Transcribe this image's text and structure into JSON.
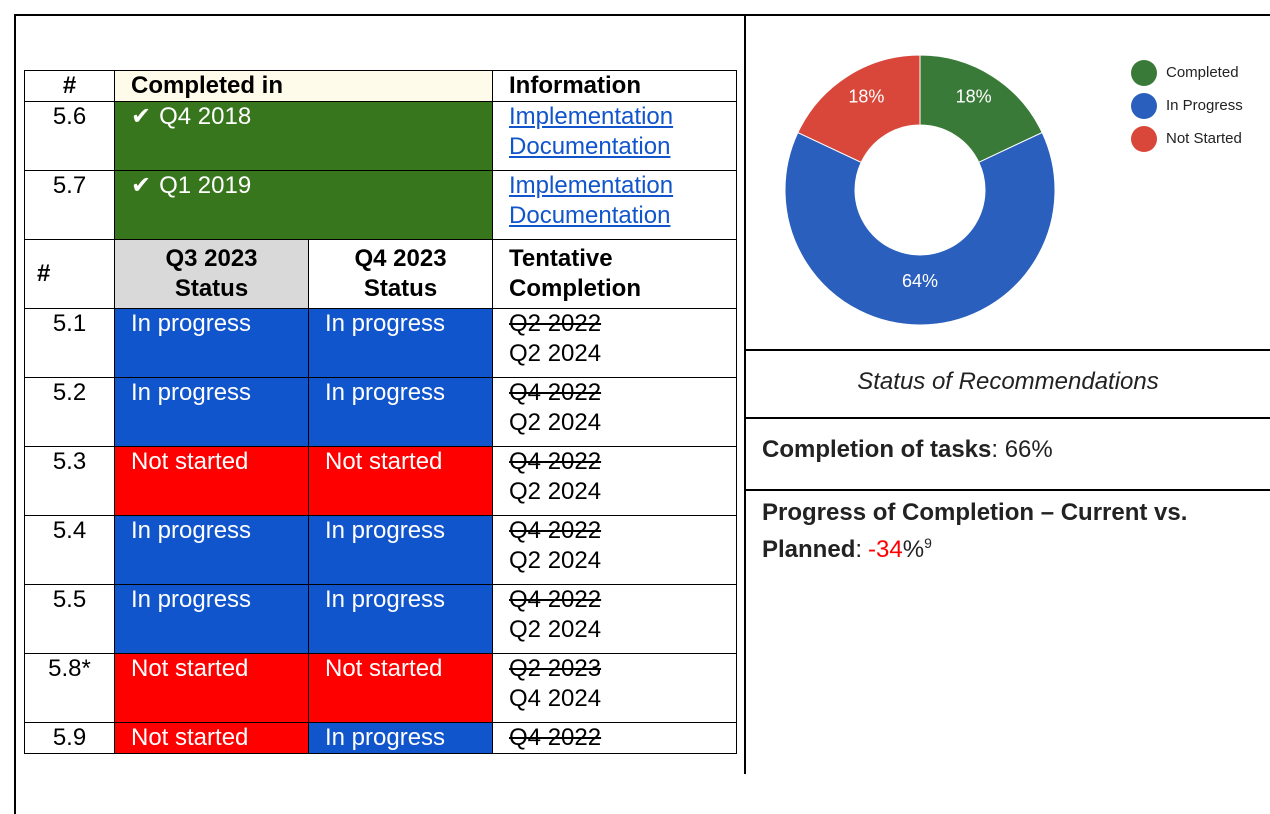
{
  "table": {
    "header1": [
      "#",
      "Completed in",
      "Information"
    ],
    "completed_rows": [
      {
        "id": "5.6",
        "check": "✔",
        "quarter": "Q4 2018",
        "links": [
          "Implementation",
          "Documentation"
        ],
        "color": "#38761d"
      },
      {
        "id": "5.7",
        "check": "✔",
        "quarter": "Q1 2019",
        "links": [
          "Implementation",
          "Documentation"
        ],
        "color": "#38761d"
      }
    ],
    "header2": [
      "#",
      "Q3 2023\nStatus",
      "Q4 2023\nStatus",
      "Tentative\nCompletion"
    ],
    "rows": [
      {
        "id": "5.1",
        "q3": "In progress",
        "q3_color": "#1155cc",
        "q4": "In progress",
        "q4_color": "#1155cc",
        "old": "Q2 2022",
        "new": "Q2 2024"
      },
      {
        "id": "5.2",
        "q3": "In progress",
        "q3_color": "#1155cc",
        "q4": "In progress",
        "q4_color": "#1155cc",
        "old": "Q4 2022",
        "new": "Q2 2024"
      },
      {
        "id": "5.3",
        "q3": "Not started",
        "q3_color": "#ff0000",
        "q4": "Not started",
        "q4_color": "#ff0000",
        "old": "Q4 2022",
        "new": "Q2 2024"
      },
      {
        "id": "5.4",
        "q3": "In progress",
        "q3_color": "#1155cc",
        "q4": "In progress",
        "q4_color": "#1155cc",
        "old": "Q4 2022",
        "new": "Q2 2024"
      },
      {
        "id": "5.5",
        "q3": "In progress",
        "q3_color": "#1155cc",
        "q4": "In progress",
        "q4_color": "#1155cc",
        "old": "Q4 2022",
        "new": "Q2 2024"
      },
      {
        "id": "5.8*",
        "q3": "Not started",
        "q3_color": "#ff0000",
        "q4": "Not started",
        "q4_color": "#ff0000",
        "old": "Q2 2023",
        "new": "Q4 2024"
      },
      {
        "id": "5.9",
        "q3": "Not started",
        "q3_color": "#ff0000",
        "q4": "In progress",
        "q4_color": "#1155cc",
        "old": "Q4 2022"
      }
    ]
  },
  "chart_data": {
    "type": "pie",
    "donut": true,
    "categories": [
      "Completed",
      "In Progress",
      "Not Started"
    ],
    "values": [
      18,
      64,
      18
    ],
    "value_labels": [
      "18%",
      "64%",
      "18%"
    ],
    "colors": [
      "#3a7a38",
      "#2a5fbd",
      "#d9473b"
    ],
    "legend": "top-right"
  },
  "caption": "Status of Recommendations",
  "completion": {
    "label": "Completion of tasks",
    "text": ": 66%"
  },
  "progress": {
    "label": "Progress of Completion – Current vs. Planned",
    "prefix": ":",
    "value": "-34",
    "unit": "%",
    "footnote": "9"
  }
}
